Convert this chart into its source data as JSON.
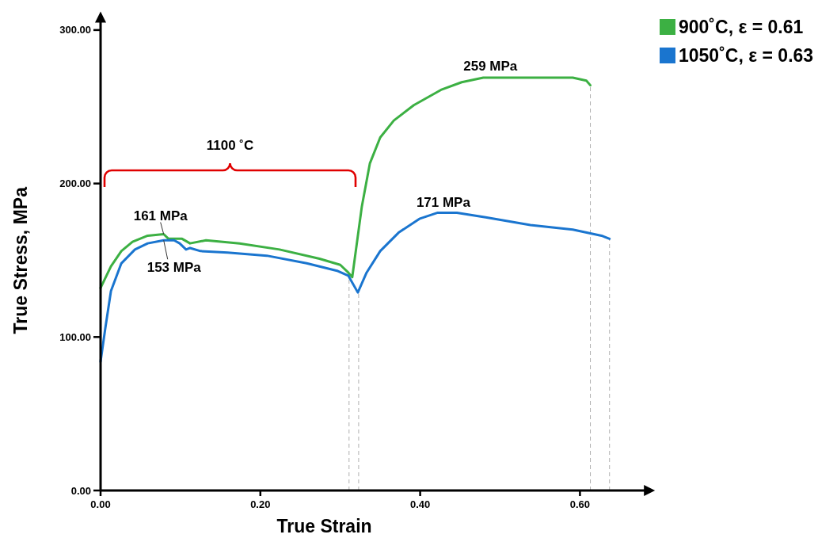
{
  "chart_data": {
    "type": "line",
    "xlabel": "True Strain",
    "ylabel": "True Stress, MPa",
    "xlim": [
      0,
      0.69
    ],
    "ylim": [
      0,
      310
    ],
    "xticks": [
      {
        "value": 0,
        "label": "0.00"
      },
      {
        "value": 0.2,
        "label": "0.20"
      },
      {
        "value": 0.4,
        "label": "0.40"
      },
      {
        "value": 0.6,
        "label": "0.60"
      }
    ],
    "yticks": [
      {
        "value": 0,
        "label": "0.00"
      },
      {
        "value": 100,
        "label": "100.00"
      },
      {
        "value": 200,
        "label": "200.00"
      },
      {
        "value": 300,
        "label": "300.00"
      }
    ],
    "legend": "top right",
    "line_style": "solid",
    "marker": "none",
    "series": [
      {
        "name": "900˚C, ε = 0.61",
        "color": "#3cb043",
        "x": [
          0,
          0.013,
          0.026,
          0.04,
          0.059,
          0.079,
          0.085,
          0.102,
          0.112,
          0.132,
          0.174,
          0.224,
          0.274,
          0.3,
          0.31,
          0.315,
          0.327,
          0.337,
          0.35,
          0.367,
          0.392,
          0.426,
          0.452,
          0.479,
          0.531,
          0.591,
          0.608,
          0.613
        ],
        "values": [
          132,
          146,
          156,
          162,
          166,
          167,
          164,
          164,
          161,
          163,
          161,
          157,
          151,
          147,
          142,
          139,
          185,
          213,
          230,
          241,
          251,
          261,
          266,
          269,
          269,
          269,
          267,
          264
        ]
      },
      {
        "name": "1050˚C, ε = 0.63",
        "color": "#1a75cf",
        "x": [
          0,
          0.006,
          0.013,
          0.026,
          0.043,
          0.059,
          0.079,
          0.092,
          0.099,
          0.107,
          0.112,
          0.125,
          0.159,
          0.208,
          0.258,
          0.297,
          0.31,
          0.322,
          0.333,
          0.35,
          0.373,
          0.399,
          0.422,
          0.446,
          0.482,
          0.538,
          0.591,
          0.627,
          0.637
        ],
        "values": [
          84,
          106,
          130,
          148,
          157,
          161,
          163,
          163,
          161,
          157,
          158,
          156,
          155,
          153,
          148,
          143,
          140,
          129,
          142,
          156,
          168,
          177,
          181,
          181,
          178,
          173,
          170,
          166,
          164
        ]
      }
    ],
    "ref_lines": [
      {
        "axis": "x",
        "value": 0.311,
        "color": "#b0b0b0",
        "line_style": "dashed"
      },
      {
        "axis": "x",
        "value": 0.323,
        "color": "#b0b0b0",
        "line_style": "dashed"
      },
      {
        "axis": "x",
        "value": 0.613,
        "color": "#b0b0b0",
        "line_style": "dashed"
      },
      {
        "axis": "x",
        "value": 0.637,
        "color": "#b0b0b0",
        "line_style": "dashed"
      }
    ],
    "annotations": [
      "1100 ˚C",
      {
        "text": "161 MPa",
        "x": 0.079,
        "y": 167
      },
      {
        "text": "153 MPa",
        "x": 0.079,
        "y": 163
      },
      {
        "text": "259 MPa",
        "x": 0.479,
        "y": 269
      },
      {
        "text": "171 MPa",
        "x": 0.434,
        "y": 181
      }
    ]
  }
}
